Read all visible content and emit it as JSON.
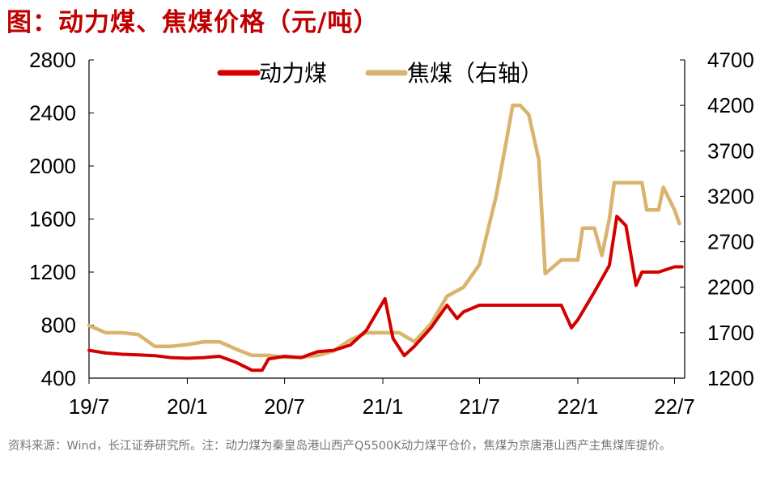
{
  "title": "图：动力煤、焦煤价格（元/吨）",
  "note": "资料来源：Wind，长江证券研究所。注：动力煤为秦皇岛港山西产Q5500K动力煤平仓价，焦煤为京唐港山西产主焦煤库提价。",
  "legend": [
    "动力煤",
    "焦煤（右轴）"
  ],
  "colors": {
    "thermal": "#d40000",
    "coking": "#d9b46e",
    "title": "#c00000"
  },
  "chart_data": {
    "type": "line",
    "x_ticks": [
      "19/7",
      "20/1",
      "20/7",
      "21/1",
      "21/7",
      "22/1",
      "22/7"
    ],
    "y_left": {
      "range": [
        400,
        2800
      ],
      "ticks": [
        "2800",
        "2400",
        "2000",
        "1600",
        "1200",
        "800",
        "400"
      ]
    },
    "y_right": {
      "range": [
        1200,
        4700
      ],
      "ticks": [
        "4700",
        "4200",
        "3700",
        "3200",
        "2700",
        "2200",
        "1700",
        "1200"
      ]
    },
    "series": [
      {
        "name": "动力煤",
        "axis": "left",
        "color": "#d40000",
        "points": [
          [
            "2019-07",
            610
          ],
          [
            "2019-08",
            590
          ],
          [
            "2019-09",
            580
          ],
          [
            "2019-10",
            575
          ],
          [
            "2019-11",
            570
          ],
          [
            "2019-12",
            555
          ],
          [
            "2020-01",
            550
          ],
          [
            "2020-02",
            555
          ],
          [
            "2020-03",
            565
          ],
          [
            "2020-04",
            520
          ],
          [
            "2020-05",
            460
          ],
          [
            "2020-05-20",
            460
          ],
          [
            "2020-06",
            545
          ],
          [
            "2020-07",
            565
          ],
          [
            "2020-08",
            555
          ],
          [
            "2020-09",
            600
          ],
          [
            "2020-10",
            610
          ],
          [
            "2020-11",
            650
          ],
          [
            "2020-12",
            760
          ],
          [
            "2021-01-05",
            1000
          ],
          [
            "2021-01-20",
            700
          ],
          [
            "2021-02-10",
            570
          ],
          [
            "2021-03",
            640
          ],
          [
            "2021-04",
            780
          ],
          [
            "2021-05",
            950
          ],
          [
            "2021-05-20",
            850
          ],
          [
            "2021-06",
            900
          ],
          [
            "2021-07",
            950
          ],
          [
            "2021-08",
            950
          ],
          [
            "2021-09",
            950
          ],
          [
            "2021-10",
            950
          ],
          [
            "2021-11",
            950
          ],
          [
            "2021-12",
            950
          ],
          [
            "2021-12-20",
            780
          ],
          [
            "2022-01",
            840
          ],
          [
            "2022-02",
            1050
          ],
          [
            "2022-03",
            1250
          ],
          [
            "2022-03-15",
            1620
          ],
          [
            "2022-04",
            1550
          ],
          [
            "2022-04-20",
            1100
          ],
          [
            "2022-05",
            1200
          ],
          [
            "2022-06",
            1200
          ],
          [
            "2022-07",
            1240
          ],
          [
            "2022-07-15",
            1240
          ]
        ]
      },
      {
        "name": "焦煤（右轴）",
        "axis": "right",
        "color": "#d9b46e",
        "points": [
          [
            "2019-07",
            1780
          ],
          [
            "2019-08",
            1700
          ],
          [
            "2019-09",
            1700
          ],
          [
            "2019-10",
            1680
          ],
          [
            "2019-11",
            1550
          ],
          [
            "2019-12",
            1550
          ],
          [
            "2020-01",
            1570
          ],
          [
            "2020-02",
            1600
          ],
          [
            "2020-03",
            1600
          ],
          [
            "2020-04",
            1520
          ],
          [
            "2020-05",
            1450
          ],
          [
            "2020-06",
            1450
          ],
          [
            "2020-07",
            1430
          ],
          [
            "2020-08",
            1430
          ],
          [
            "2020-09",
            1450
          ],
          [
            "2020-10",
            1500
          ],
          [
            "2020-11",
            1620
          ],
          [
            "2020-12",
            1700
          ],
          [
            "2021-01",
            1700
          ],
          [
            "2021-02",
            1700
          ],
          [
            "2021-03",
            1600
          ],
          [
            "2021-04",
            1800
          ],
          [
            "2021-05",
            2100
          ],
          [
            "2021-06",
            2200
          ],
          [
            "2021-07",
            2450
          ],
          [
            "2021-08",
            3200
          ],
          [
            "2021-08-20",
            3800
          ],
          [
            "2021-09",
            4200
          ],
          [
            "2021-09-15",
            4200
          ],
          [
            "2021-10",
            4100
          ],
          [
            "2021-10-20",
            3600
          ],
          [
            "2021-11",
            2350
          ],
          [
            "2021-12",
            2500
          ],
          [
            "2022-01",
            2500
          ],
          [
            "2022-01-10",
            2850
          ],
          [
            "2022-02",
            2850
          ],
          [
            "2022-02-15",
            2550
          ],
          [
            "2022-03",
            2950
          ],
          [
            "2022-03-10",
            3350
          ],
          [
            "2022-05",
            3350
          ],
          [
            "2022-05-10",
            3050
          ],
          [
            "2022-06",
            3050
          ],
          [
            "2022-06-10",
            3300
          ],
          [
            "2022-07",
            3050
          ],
          [
            "2022-07-10",
            2900
          ]
        ]
      }
    ]
  }
}
